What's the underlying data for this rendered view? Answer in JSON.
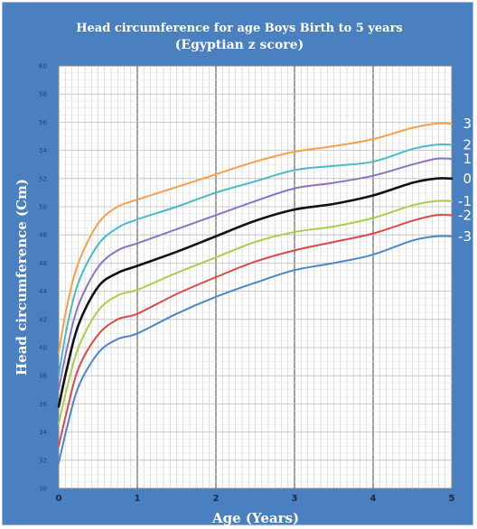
{
  "chart_data": {
    "type": "line",
    "title": "Head circumference for age Boys Birth to 5 years",
    "subtitle": "(Egyptian z score)",
    "xlabel": "Age (Years)",
    "ylabel": "Head circumference (Cm)",
    "xlim": [
      0,
      5
    ],
    "ylim": [
      30,
      60
    ],
    "x_ticks": [
      0,
      1,
      2,
      3,
      4,
      5
    ],
    "y_ticks": [
      30,
      32,
      34,
      36,
      38,
      40,
      42,
      44,
      46,
      48,
      50,
      52,
      54,
      56,
      58,
      60
    ],
    "grid": true,
    "x": [
      0,
      0.1,
      0.25,
      0.5,
      0.75,
      1,
      1.5,
      2,
      2.5,
      3,
      3.5,
      4,
      4.5,
      4.8,
      5
    ],
    "series": [
      {
        "name": "3",
        "color": "#f5a04a",
        "values": [
          39.6,
          42.8,
          46.0,
          48.8,
          50.0,
          50.5,
          51.4,
          52.3,
          53.2,
          53.9,
          54.3,
          54.8,
          55.6,
          55.9,
          55.9
        ]
      },
      {
        "name": "2",
        "color": "#4ab9c8",
        "values": [
          38.0,
          41.3,
          44.6,
          47.3,
          48.5,
          49.1,
          50.0,
          51.0,
          51.8,
          52.6,
          52.9,
          53.2,
          54.1,
          54.4,
          54.4
        ]
      },
      {
        "name": "1",
        "color": "#8e72c0",
        "values": [
          37.0,
          39.8,
          43.0,
          45.7,
          46.9,
          47.4,
          48.4,
          49.4,
          50.4,
          51.3,
          51.7,
          52.2,
          53.0,
          53.4,
          53.4
        ]
      },
      {
        "name": "0",
        "color": "#111111",
        "values": [
          35.8,
          38.4,
          41.6,
          44.3,
          45.3,
          45.8,
          46.8,
          47.9,
          49.0,
          49.8,
          50.2,
          50.8,
          51.7,
          52.0,
          52.0
        ]
      },
      {
        "name": "-1",
        "color": "#a8cf4a",
        "values": [
          34.6,
          37.0,
          40.0,
          42.6,
          43.7,
          44.1,
          45.3,
          46.4,
          47.5,
          48.2,
          48.6,
          49.2,
          50.1,
          50.4,
          50.4
        ]
      },
      {
        "name": "-2",
        "color": "#dd4848",
        "values": [
          33.0,
          35.4,
          38.5,
          40.9,
          42.0,
          42.4,
          43.8,
          45.0,
          46.1,
          46.9,
          47.5,
          48.1,
          49.0,
          49.4,
          49.4
        ]
      },
      {
        "name": "-3",
        "color": "#4a86c8",
        "values": [
          31.8,
          34.2,
          37.2,
          39.6,
          40.6,
          41.0,
          42.4,
          43.6,
          44.6,
          45.5,
          46.0,
          46.6,
          47.6,
          47.9,
          47.9
        ]
      }
    ]
  }
}
